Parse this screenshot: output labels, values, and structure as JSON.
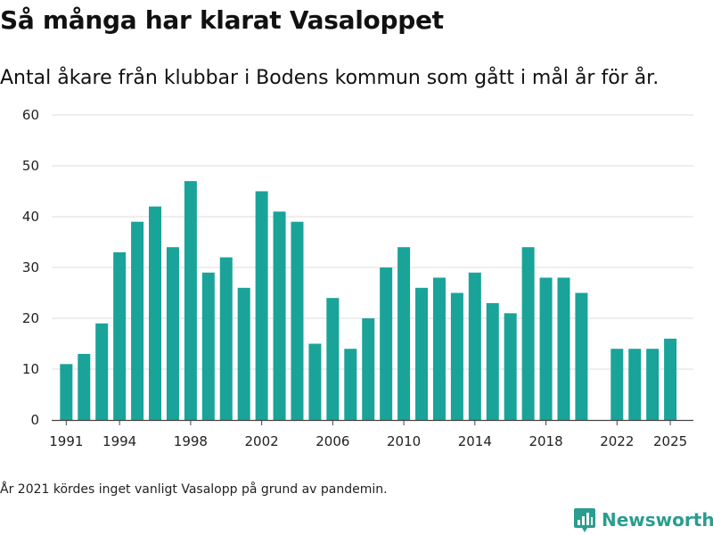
{
  "header": {
    "title": "Så många har klarat Vasaloppet",
    "subtitle": "Antal åkare från klubbar i Bodens kommun som gått i mål år för år."
  },
  "footnote": "År 2021 kördes inget vanligt Vasalopp på grund av pandemin.",
  "brand": {
    "name": "Newsworthy",
    "logo_icon": "bar-chart-badge-icon",
    "color": "#2a9d8f"
  },
  "chart_data": {
    "type": "bar",
    "title": "",
    "xlabel": "",
    "ylabel": "",
    "ylim": [
      0,
      60
    ],
    "yticks": [
      0,
      10,
      20,
      30,
      40,
      50,
      60
    ],
    "xticks": [
      1991,
      1994,
      1998,
      2002,
      2006,
      2010,
      2014,
      2018,
      2022,
      2025
    ],
    "grid": true,
    "bar_color": "#1aa399",
    "x": [
      1991,
      1992,
      1993,
      1994,
      1995,
      1996,
      1997,
      1998,
      1999,
      2000,
      2001,
      2002,
      2003,
      2004,
      2005,
      2006,
      2007,
      2008,
      2009,
      2010,
      2011,
      2012,
      2013,
      2014,
      2015,
      2016,
      2017,
      2018,
      2019,
      2020,
      2022,
      2023,
      2024,
      2025
    ],
    "values": [
      11,
      13,
      19,
      33,
      39,
      42,
      34,
      47,
      29,
      32,
      26,
      45,
      41,
      39,
      15,
      24,
      14,
      20,
      30,
      34,
      26,
      28,
      25,
      29,
      23,
      21,
      34,
      28,
      28,
      25,
      14,
      14,
      14,
      16
    ]
  }
}
